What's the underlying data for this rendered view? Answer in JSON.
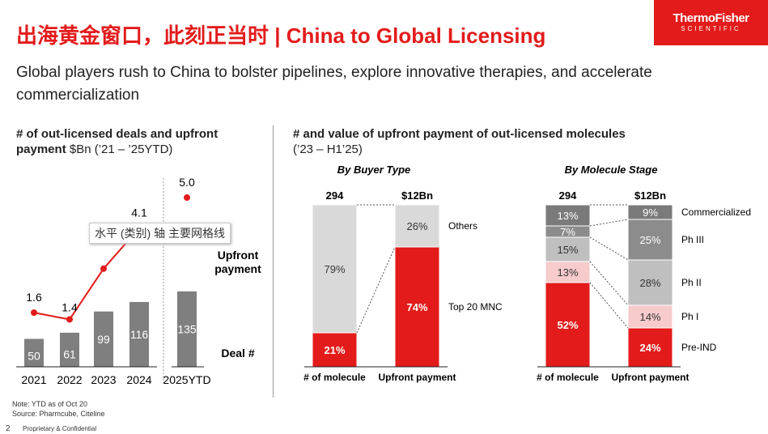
{
  "title": "出海黄金窗口，此刻正当时 | China to Global Licensing",
  "logo": {
    "line1": "ThermoFisher",
    "line2": "SCIENTIFIC"
  },
  "subtitle": "Global players rush to China to bolster pipelines, explore innovative therapies, and accelerate commercialization",
  "left": {
    "heading_bold": "# of out-licensed deals and upfront payment",
    "heading_rest": " $Bn (’21 – ’25YTD)",
    "series_upfront_label": "Upfront payment",
    "series_deal_label": "Deal #",
    "tooltip": "水平 (类别) 轴 主要网格线"
  },
  "middle": {
    "heading": "# and value of upfront payment of out-licensed molecules",
    "heading_sub": "(’23 – H1’25)"
  },
  "chart_data": [
    {
      "type": "bar+line",
      "categories": [
        "2021",
        "2022",
        "2023",
        "2024",
        "2025YTD"
      ],
      "series": [
        {
          "name": "Deal #",
          "values": [
            50,
            61,
            99,
            116,
            135
          ]
        },
        {
          "name": "Upfront payment",
          "values": [
            1.6,
            1.4,
            null,
            4.1,
            5.0
          ]
        }
      ],
      "colors": {
        "bar": "#7f7f7f",
        "line": "#e31b1b"
      }
    },
    {
      "type": "stacked-bar",
      "title": "By Buyer Type",
      "categories": [
        "# of molecule",
        "Upfront payment"
      ],
      "totals": [
        "294",
        "$12Bn"
      ],
      "segments": [
        "Top 20 MNC",
        "Others"
      ],
      "values": [
        [
          21,
          79
        ],
        [
          74,
          26
        ]
      ],
      "colors": [
        "#e31b1b",
        "#d9d9d9"
      ]
    },
    {
      "type": "stacked-bar",
      "title": "By Molecule Stage",
      "categories": [
        "# of molecule",
        "Upfront payment"
      ],
      "totals": [
        "294",
        "$12Bn"
      ],
      "segments": [
        "Pre-IND",
        "Ph I",
        "Ph II",
        "Ph III",
        "Commercialized"
      ],
      "values": [
        [
          52,
          13,
          15,
          7,
          13
        ],
        [
          24,
          14,
          28,
          25,
          9
        ]
      ],
      "colors": [
        "#e31b1b",
        "#f7cbcb",
        "#bfbfbf",
        "#8c8c8c",
        "#7a7a7a"
      ]
    }
  ],
  "footer": {
    "note": "Note: YTD as of Oct 20",
    "source": "Source: Pharmcube, Citeline",
    "page": "2",
    "confidential": "Proprietary & Confidential"
  }
}
